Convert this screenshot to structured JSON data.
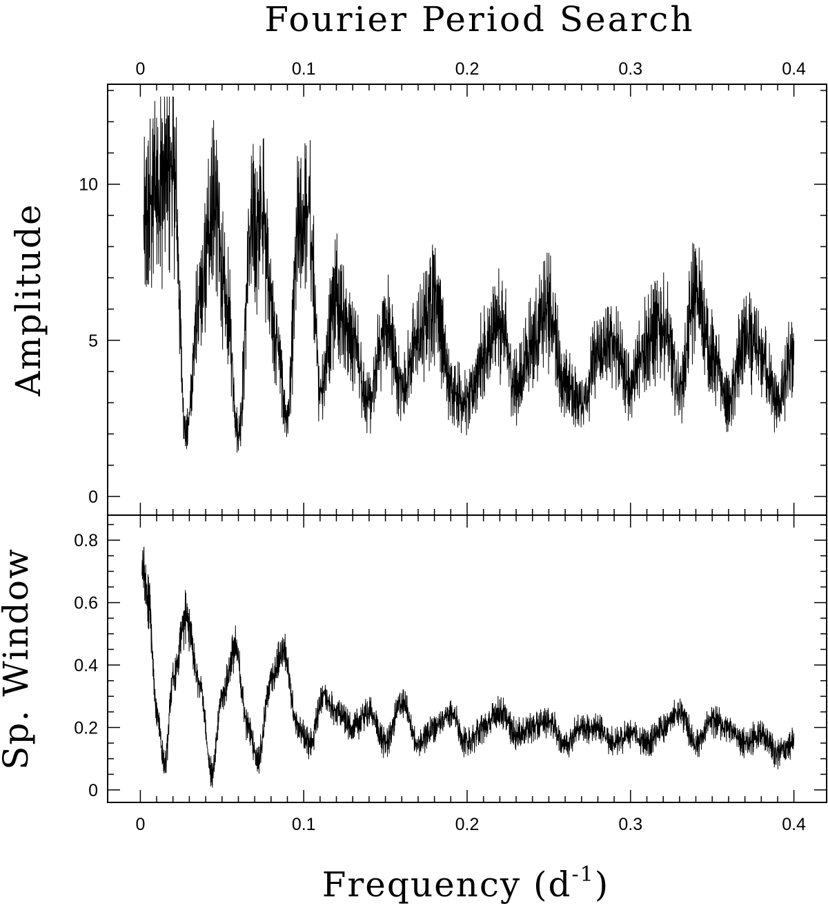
{
  "title": "Fourier Period Search",
  "xlabel_main": "Frequency (d",
  "xlabel_sup": "-1",
  "xlabel_close": ")",
  "chart_data": [
    {
      "type": "line",
      "panel": "top",
      "ylabel": "Amplitude",
      "xlim": [
        -0.02,
        0.42
      ],
      "ylim": [
        -0.6,
        13.2
      ],
      "x_ticks_major": [
        0,
        0.1,
        0.2,
        0.3,
        0.4
      ],
      "x_tick_labels": [
        "0",
        "0.1",
        "0.2",
        "0.3",
        "0.4"
      ],
      "y_ticks_major": [
        0,
        5,
        10
      ],
      "y_tick_labels": [
        "0",
        "5",
        "10"
      ],
      "x_tick_labels_position": "top",
      "grid": false,
      "series": [
        {
          "x": [
            0.002,
            0.01,
            0.02,
            0.028,
            0.036,
            0.045,
            0.053,
            0.06,
            0.068,
            0.075,
            0.083,
            0.09,
            0.097,
            0.103,
            0.11,
            0.12,
            0.13,
            0.14,
            0.15,
            0.16,
            0.17,
            0.18,
            0.19,
            0.2,
            0.21,
            0.22,
            0.23,
            0.24,
            0.25,
            0.26,
            0.27,
            0.28,
            0.29,
            0.3,
            0.31,
            0.32,
            0.33,
            0.34,
            0.35,
            0.36,
            0.37,
            0.38,
            0.39,
            0.4
          ],
          "y": [
            8.5,
            10.0,
            10.5,
            2.0,
            6.0,
            9.5,
            6.0,
            2.0,
            8.5,
            9.0,
            5.0,
            2.5,
            8.5,
            9.0,
            3.5,
            6.5,
            5.0,
            3.0,
            5.5,
            3.5,
            5.0,
            6.5,
            3.5,
            3.0,
            4.5,
            5.5,
            3.5,
            5.0,
            6.0,
            3.5,
            3.0,
            4.5,
            5.0,
            3.5,
            5.0,
            5.5,
            3.5,
            6.5,
            4.5,
            3.0,
            5.0,
            4.5,
            3.0,
            4.5
          ]
        }
      ]
    },
    {
      "type": "line",
      "panel": "bottom",
      "ylabel": "Sp. Window",
      "xlim": [
        -0.02,
        0.42
      ],
      "ylim": [
        -0.04,
        0.88
      ],
      "x_ticks_major": [
        0,
        0.1,
        0.2,
        0.3,
        0.4
      ],
      "x_tick_labels": [
        "0",
        "0.1",
        "0.2",
        "0.3",
        "0.4"
      ],
      "y_ticks_major": [
        0,
        0.2,
        0.4,
        0.6,
        0.8
      ],
      "y_tick_labels": [
        "0",
        "0.2",
        "0.4",
        "0.6",
        "0.8"
      ],
      "x_tick_labels_position": "bottom",
      "grid": false,
      "series": [
        {
          "x": [
            0.001,
            0.005,
            0.01,
            0.015,
            0.02,
            0.028,
            0.036,
            0.044,
            0.05,
            0.058,
            0.066,
            0.072,
            0.08,
            0.088,
            0.096,
            0.104,
            0.112,
            0.12,
            0.13,
            0.14,
            0.15,
            0.16,
            0.17,
            0.18,
            0.19,
            0.2,
            0.21,
            0.22,
            0.23,
            0.24,
            0.25,
            0.26,
            0.27,
            0.28,
            0.29,
            0.3,
            0.31,
            0.32,
            0.33,
            0.34,
            0.35,
            0.36,
            0.37,
            0.38,
            0.39,
            0.4
          ],
          "y": [
            0.72,
            0.6,
            0.25,
            0.08,
            0.35,
            0.55,
            0.35,
            0.05,
            0.3,
            0.45,
            0.2,
            0.1,
            0.35,
            0.45,
            0.2,
            0.15,
            0.3,
            0.25,
            0.2,
            0.25,
            0.15,
            0.28,
            0.15,
            0.2,
            0.25,
            0.15,
            0.2,
            0.25,
            0.18,
            0.2,
            0.22,
            0.15,
            0.2,
            0.2,
            0.15,
            0.18,
            0.15,
            0.2,
            0.25,
            0.15,
            0.22,
            0.2,
            0.15,
            0.18,
            0.12,
            0.15
          ]
        }
      ]
    }
  ]
}
